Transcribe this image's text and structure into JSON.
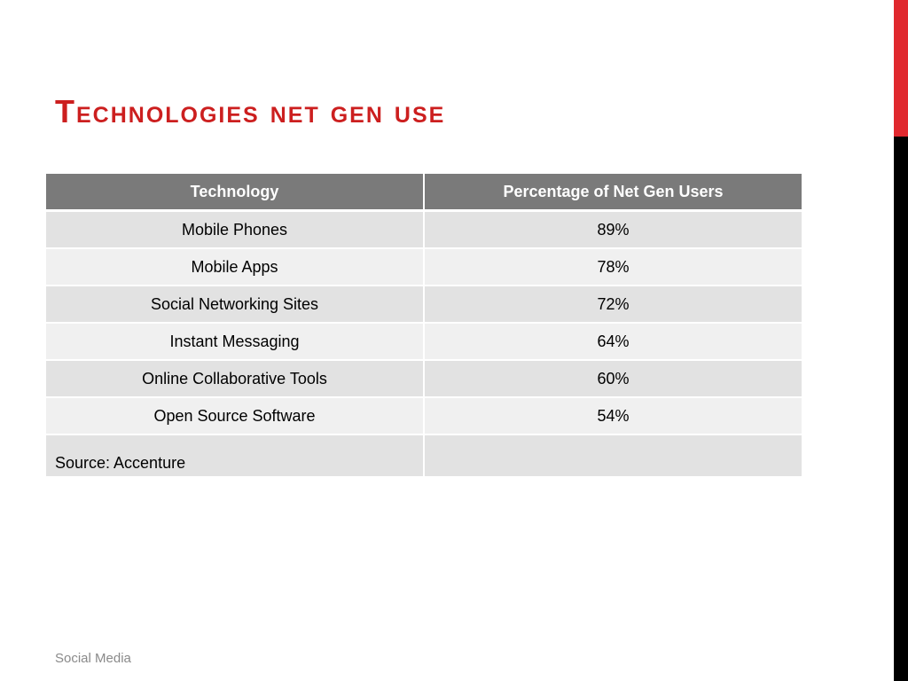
{
  "slide": {
    "title": "Technologies net gen use",
    "footer": "Social Media"
  },
  "table": {
    "headers": [
      "Technology",
      "Percentage of Net Gen Users"
    ],
    "rows": [
      {
        "technology": "Mobile Phones",
        "percentage": "89%"
      },
      {
        "technology": "Mobile Apps",
        "percentage": "78%"
      },
      {
        "technology": "Social Networking Sites",
        "percentage": "72%"
      },
      {
        "technology": "Instant Messaging",
        "percentage": "64%"
      },
      {
        "technology": "Online Collaborative Tools",
        "percentage": "60%"
      },
      {
        "technology": "Open Source Software",
        "percentage": "54%"
      }
    ],
    "source": "Source: Accenture",
    "source_value": ""
  },
  "colors": {
    "title": "#cc1f1f",
    "accent_red": "#e0282e",
    "accent_black": "#000000",
    "header_bg": "#7a7a7a",
    "row_dark": "#e2e2e2",
    "row_light": "#f0f0f0"
  }
}
